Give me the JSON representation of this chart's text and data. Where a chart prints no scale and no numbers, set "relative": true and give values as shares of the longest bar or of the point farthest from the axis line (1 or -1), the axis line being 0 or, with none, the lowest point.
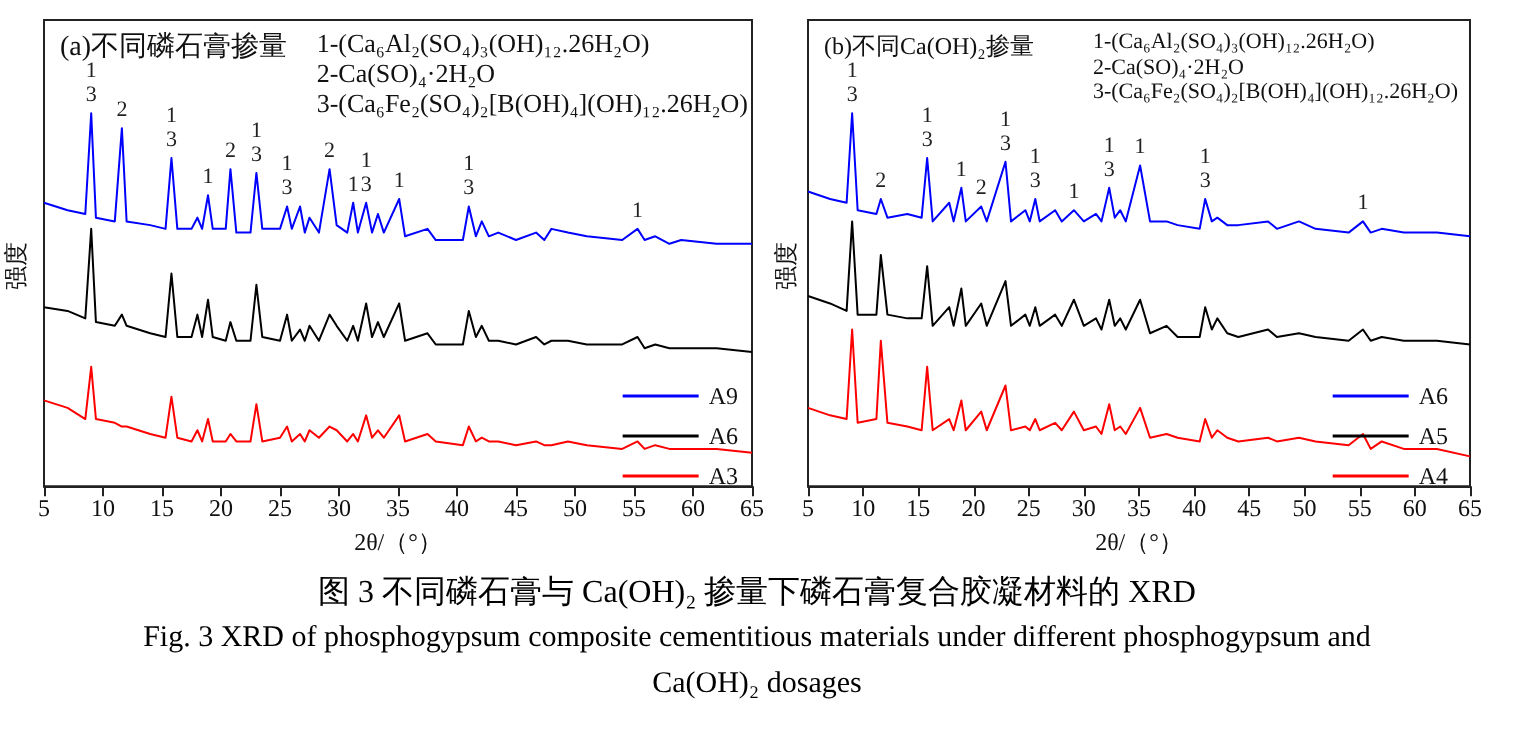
{
  "chart_data": [
    {
      "type": "line",
      "title": "(a)不同磷石膏掺量",
      "xlabel": "2θ/（°）",
      "ylabel": "强度",
      "relative": true,
      "legend": "bottom right",
      "grid": false,
      "marker": "none",
      "xlim": [
        5,
        65
      ],
      "xticks": [
        5,
        10,
        15,
        20,
        25,
        30,
        35,
        40,
        45,
        50,
        55,
        60,
        65
      ],
      "x": [
        5,
        7,
        8.5,
        9,
        9.4,
        11,
        11.6,
        12,
        14,
        15.3,
        15.8,
        16.3,
        17.5,
        18,
        18.4,
        18.9,
        19.3,
        20.4,
        20.8,
        21.3,
        22.5,
        23,
        23.5,
        25,
        25.6,
        26,
        26.7,
        27.1,
        27.5,
        28.3,
        29.2,
        29.8,
        30.7,
        31.2,
        31.6,
        32.3,
        32.8,
        33.3,
        33.8,
        35.1,
        35.6,
        37.5,
        38.2,
        40.5,
        41,
        41.6,
        42.1,
        42.7,
        43.5,
        45,
        46.7,
        47.4,
        48,
        49.4,
        51,
        54,
        55.3,
        55.9,
        56.8,
        58,
        59,
        62,
        65
      ],
      "series": [
        {
          "name": "A9",
          "color": "#0000ff",
          "values": [
            0.76,
            0.74,
            0.73,
            1.0,
            0.72,
            0.71,
            0.96,
            0.71,
            0.7,
            0.69,
            0.88,
            0.69,
            0.69,
            0.72,
            0.69,
            0.78,
            0.69,
            0.69,
            0.85,
            0.68,
            0.68,
            0.84,
            0.69,
            0.69,
            0.75,
            0.69,
            0.75,
            0.68,
            0.72,
            0.68,
            0.85,
            0.7,
            0.68,
            0.76,
            0.68,
            0.76,
            0.68,
            0.73,
            0.68,
            0.77,
            0.67,
            0.69,
            0.66,
            0.66,
            0.75,
            0.67,
            0.71,
            0.67,
            0.68,
            0.66,
            0.68,
            0.66,
            0.69,
            0.68,
            0.67,
            0.66,
            0.69,
            0.66,
            0.67,
            0.65,
            0.66,
            0.65,
            0.65
          ]
        },
        {
          "name": "A6",
          "color": "#000000",
          "values": [
            0.48,
            0.47,
            0.45,
            0.69,
            0.44,
            0.43,
            0.46,
            0.43,
            0.41,
            0.4,
            0.57,
            0.4,
            0.4,
            0.46,
            0.4,
            0.5,
            0.4,
            0.39,
            0.44,
            0.39,
            0.39,
            0.54,
            0.4,
            0.39,
            0.46,
            0.39,
            0.42,
            0.39,
            0.43,
            0.39,
            0.46,
            0.43,
            0.39,
            0.43,
            0.39,
            0.49,
            0.4,
            0.44,
            0.4,
            0.49,
            0.39,
            0.41,
            0.38,
            0.38,
            0.47,
            0.4,
            0.43,
            0.39,
            0.39,
            0.38,
            0.4,
            0.38,
            0.39,
            0.39,
            0.38,
            0.38,
            0.4,
            0.37,
            0.38,
            0.37,
            0.37,
            0.37,
            0.36
          ]
        },
        {
          "name": "A3",
          "color": "#ff0000",
          "values": [
            0.23,
            0.21,
            0.18,
            0.32,
            0.18,
            0.17,
            0.16,
            0.16,
            0.14,
            0.13,
            0.24,
            0.13,
            0.12,
            0.15,
            0.12,
            0.18,
            0.12,
            0.12,
            0.14,
            0.12,
            0.12,
            0.22,
            0.12,
            0.13,
            0.16,
            0.12,
            0.14,
            0.12,
            0.15,
            0.13,
            0.16,
            0.15,
            0.12,
            0.14,
            0.12,
            0.19,
            0.13,
            0.15,
            0.13,
            0.19,
            0.12,
            0.14,
            0.12,
            0.11,
            0.16,
            0.12,
            0.13,
            0.12,
            0.12,
            0.11,
            0.12,
            0.11,
            0.11,
            0.12,
            0.11,
            0.1,
            0.12,
            0.1,
            0.11,
            0.1,
            0.1,
            0.1,
            0.09
          ]
        }
      ],
      "annotations": [
        "1-(Ca₆Al₂(SO₄)₃(OH)₁₂.26H₂O)",
        "2-Ca(SO)₄·2H₂O",
        "3-(Ca₆Fe₂(SO₄)₂[B(OH)₄](OH)₁₂.26H₂O)",
        {
          "text": "1\n3",
          "x": 9,
          "y": 1.0
        },
        {
          "text": "2",
          "x": 11.6,
          "y": 0.96
        },
        {
          "text": "1\n3",
          "x": 15.8,
          "y": 0.88
        },
        {
          "text": "1",
          "x": 18.9,
          "y": 0.78
        },
        {
          "text": "2",
          "x": 20.8,
          "y": 0.85
        },
        {
          "text": "1\n3",
          "x": 23,
          "y": 0.84
        },
        {
          "text": "1\n3",
          "x": 25.6,
          "y": 0.75
        },
        {
          "text": "2",
          "x": 29.2,
          "y": 0.85
        },
        {
          "text": "1",
          "x": 31.2,
          "y": 0.76
        },
        {
          "text": "1\n3",
          "x": 32.3,
          "y": 0.76
        },
        {
          "text": "1",
          "x": 35.1,
          "y": 0.77
        },
        {
          "text": "1\n3",
          "x": 41,
          "y": 0.75
        },
        {
          "text": "1",
          "x": 55.3,
          "y": 0.69
        }
      ]
    },
    {
      "type": "line",
      "title": "(b)不同Ca(OH)₂掺量",
      "xlabel": "2θ/（°）",
      "ylabel": "强度",
      "relative": true,
      "legend": "bottom right",
      "grid": false,
      "marker": "none",
      "xlim": [
        5,
        65
      ],
      "xticks": [
        5,
        10,
        15,
        20,
        25,
        30,
        35,
        40,
        45,
        50,
        55,
        60,
        65
      ],
      "x": [
        5,
        7,
        8.5,
        9,
        9.5,
        11.2,
        11.6,
        12.2,
        14,
        15.3,
        15.8,
        16.3,
        17.8,
        18.2,
        18.9,
        19.3,
        20.7,
        21.2,
        22.9,
        23.4,
        24.7,
        25.1,
        25.6,
        26,
        27.4,
        28,
        29.1,
        30,
        31.1,
        31.6,
        32.3,
        32.8,
        33.3,
        33.8,
        35.1,
        36,
        37.5,
        38.5,
        40.5,
        41,
        41.6,
        42.1,
        43,
        44,
        46.7,
        47.5,
        49.5,
        51,
        54,
        55.3,
        56,
        57,
        59,
        62,
        65
      ],
      "series": [
        {
          "name": "A6",
          "color": "#0000ff",
          "values": [
            0.79,
            0.77,
            0.76,
            1.0,
            0.74,
            0.73,
            0.77,
            0.72,
            0.73,
            0.72,
            0.88,
            0.71,
            0.76,
            0.71,
            0.8,
            0.71,
            0.75,
            0.71,
            0.87,
            0.71,
            0.74,
            0.71,
            0.77,
            0.71,
            0.74,
            0.71,
            0.74,
            0.71,
            0.73,
            0.71,
            0.8,
            0.72,
            0.74,
            0.71,
            0.86,
            0.71,
            0.71,
            0.7,
            0.69,
            0.77,
            0.71,
            0.72,
            0.7,
            0.7,
            0.71,
            0.69,
            0.71,
            0.69,
            0.68,
            0.71,
            0.68,
            0.69,
            0.68,
            0.68,
            0.67
          ]
        },
        {
          "name": "A5",
          "color": "#000000",
          "values": [
            0.51,
            0.49,
            0.47,
            0.71,
            0.46,
            0.46,
            0.62,
            0.46,
            0.45,
            0.45,
            0.59,
            0.43,
            0.48,
            0.43,
            0.53,
            0.43,
            0.49,
            0.43,
            0.55,
            0.43,
            0.46,
            0.43,
            0.48,
            0.43,
            0.46,
            0.43,
            0.5,
            0.43,
            0.45,
            0.42,
            0.5,
            0.43,
            0.45,
            0.42,
            0.5,
            0.41,
            0.43,
            0.4,
            0.4,
            0.48,
            0.42,
            0.45,
            0.41,
            0.4,
            0.42,
            0.4,
            0.41,
            0.4,
            0.39,
            0.42,
            0.39,
            0.4,
            0.39,
            0.39,
            0.38
          ]
        },
        {
          "name": "A4",
          "color": "#ff0000",
          "values": [
            0.21,
            0.19,
            0.18,
            0.42,
            0.17,
            0.18,
            0.39,
            0.17,
            0.16,
            0.15,
            0.32,
            0.15,
            0.18,
            0.15,
            0.23,
            0.15,
            0.2,
            0.15,
            0.27,
            0.15,
            0.16,
            0.15,
            0.18,
            0.15,
            0.17,
            0.15,
            0.2,
            0.15,
            0.16,
            0.14,
            0.22,
            0.15,
            0.16,
            0.14,
            0.21,
            0.13,
            0.14,
            0.13,
            0.12,
            0.18,
            0.13,
            0.15,
            0.13,
            0.12,
            0.13,
            0.12,
            0.13,
            0.12,
            0.11,
            0.14,
            0.1,
            0.12,
            0.1,
            0.1,
            0.08
          ]
        }
      ],
      "annotations": [
        "1-(Ca₆Al₂(SO₄)₃(OH)₁₂.26H₂O)",
        "2-Ca(SO)₄·2H₂O",
        "3-(Ca₆Fe₂(SO₄)₂[B(OH)₄](OH)₁₂.26H₂O)",
        {
          "text": "1\n3",
          "x": 9,
          "y": 1.0
        },
        {
          "text": "2",
          "x": 11.6,
          "y": 0.77
        },
        {
          "text": "1\n3",
          "x": 15.8,
          "y": 0.88
        },
        {
          "text": "1",
          "x": 18.9,
          "y": 0.8
        },
        {
          "text": "2",
          "x": 20.7,
          "y": 0.75
        },
        {
          "text": "1\n3",
          "x": 22.9,
          "y": 0.87
        },
        {
          "text": "1\n3",
          "x": 25.6,
          "y": 0.77
        },
        {
          "text": "1",
          "x": 29.1,
          "y": 0.74
        },
        {
          "text": "1\n3",
          "x": 32.3,
          "y": 0.8
        },
        {
          "text": "1",
          "x": 35.1,
          "y": 0.86
        },
        {
          "text": "1\n3",
          "x": 41,
          "y": 0.77
        },
        {
          "text": "1",
          "x": 55.3,
          "y": 0.71
        }
      ]
    },
    {
      "type": "other",
      "annotations": [
        "图  3 不同磷石膏与 Ca(OH)₂ 掺量下磷石膏复合胶凝材料的 XRD",
        "Fig. 3 XRD of phosphogypsum composite cementitious materials under different phosphogypsum and",
        "Ca(OH)₂ dosages"
      ]
    }
  ]
}
